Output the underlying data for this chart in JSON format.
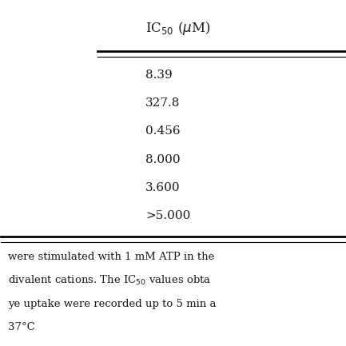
{
  "header": "IC$_{50}$ ($\\mu$M)",
  "values": [
    "8.39",
    "327.8",
    "0.456",
    "8.000",
    "3.600",
    ">5.000"
  ],
  "footer_lines": [
    "were stimulated with 1 mM ATP in the",
    "divalent cations. The IC$_{50}$ values obta",
    "ye uptake were recorded up to 5 min a",
    "37°C"
  ],
  "bg_color": "#ffffff",
  "text_color": "#1a1a1a",
  "font_size": 11,
  "header_font_size": 12,
  "footer_font_size": 9.5
}
